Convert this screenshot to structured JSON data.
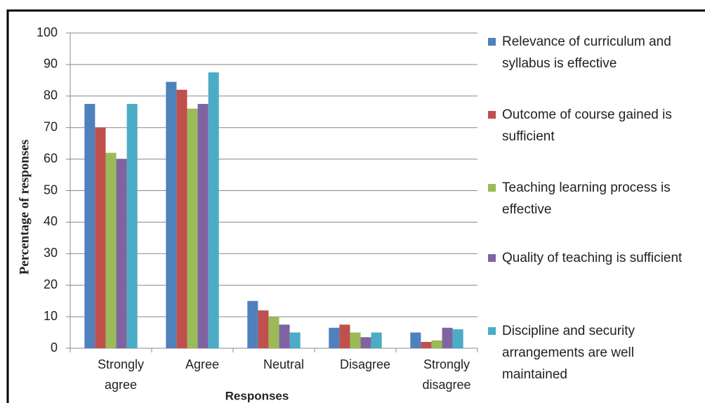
{
  "chart_data": {
    "type": "bar",
    "y_label": "Percentage of responses",
    "x_label": "Responses",
    "categories": [
      "Strongly agree",
      "Agree",
      "Neutral",
      "Disagree",
      "Strongly disagree"
    ],
    "series": [
      {
        "name": "Relevance of curriculum and syllabus is effective",
        "color": "#4f81bd",
        "values": [
          77.5,
          84.5,
          15,
          6.5,
          5
        ]
      },
      {
        "name": "Outcome of course gained is sufficient",
        "color": "#c0504d",
        "values": [
          70,
          82,
          12,
          7.5,
          2
        ]
      },
      {
        "name": "Teaching learning process is effective",
        "color": "#9bbb59",
        "values": [
          62,
          76,
          10,
          5,
          2.5
        ]
      },
      {
        "name": "Quality of teaching is sufficient",
        "color": "#8064a2",
        "values": [
          60,
          77.5,
          7.5,
          3.5,
          6.5
        ]
      },
      {
        "name": "Discipline and security arrangements are well maintained",
        "color": "#4bacc6",
        "values": [
          77.5,
          87.5,
          5,
          5,
          6
        ]
      }
    ],
    "ylim": [
      0,
      100
    ],
    "yticks": [
      0,
      10,
      20,
      30,
      40,
      50,
      60,
      70,
      80,
      90,
      100
    ],
    "grid": true,
    "legend": "right"
  }
}
